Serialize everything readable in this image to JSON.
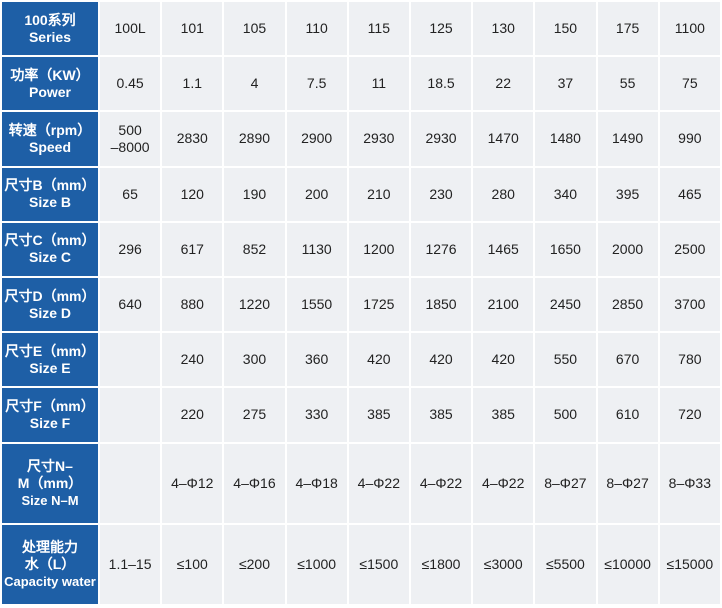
{
  "table": {
    "rows": [
      {
        "label": [
          "100系列",
          "Series"
        ],
        "cells": [
          "100L",
          "101",
          "105",
          "110",
          "115",
          "125",
          "130",
          "150",
          "175",
          "1100"
        ]
      },
      {
        "label": [
          "功率（KW）",
          "Power"
        ],
        "cells": [
          "0.45",
          "1.1",
          "4",
          "7.5",
          "11",
          "18.5",
          "22",
          "37",
          "55",
          "75"
        ]
      },
      {
        "label": [
          "转速（rpm）",
          "Speed"
        ],
        "cells": [
          [
            "500",
            "–8000"
          ],
          "2830",
          "2890",
          "2900",
          "2930",
          "2930",
          "1470",
          "1480",
          "1490",
          "990"
        ]
      },
      {
        "label": [
          "尺寸B（mm）",
          "Size B"
        ],
        "cells": [
          "65",
          "120",
          "190",
          "200",
          "210",
          "230",
          "280",
          "340",
          "395",
          "465"
        ]
      },
      {
        "label": [
          "尺寸C（mm）",
          "Size C"
        ],
        "cells": [
          "296",
          "617",
          "852",
          "1130",
          "1200",
          "1276",
          "1465",
          "1650",
          "2000",
          "2500"
        ]
      },
      {
        "label": [
          "尺寸D（mm）",
          "Size D"
        ],
        "cells": [
          "640",
          "880",
          "1220",
          "1550",
          "1725",
          "1850",
          "2100",
          "2450",
          "2850",
          "3700"
        ]
      },
      {
        "label": [
          "尺寸E（mm）",
          "Size E"
        ],
        "cells": [
          null,
          "240",
          "300",
          "360",
          "420",
          "420",
          "420",
          "550",
          "670",
          "780"
        ]
      },
      {
        "label": [
          "尺寸F（mm）",
          "Size F"
        ],
        "cells": [
          null,
          "220",
          "275",
          "330",
          "385",
          "385",
          "385",
          "500",
          "610",
          "720"
        ]
      },
      {
        "label": [
          "尺寸N–",
          "M（mm）",
          "Size N–M"
        ],
        "cells": [
          null,
          "4–Φ12",
          "4–Φ16",
          "4–Φ18",
          "4–Φ22",
          "4–Φ22",
          "4–Φ22",
          "8–Φ27",
          "8–Φ27",
          "8–Φ33"
        ]
      },
      {
        "label": [
          "处理能力",
          "水（L）",
          "Capacity water"
        ],
        "cells": [
          "1.1–15",
          "≤100",
          "≤200",
          "≤1000",
          "≤1500",
          "≤1800",
          "≤3000",
          "≤5500",
          "≤10000",
          "≤15000"
        ]
      }
    ]
  }
}
